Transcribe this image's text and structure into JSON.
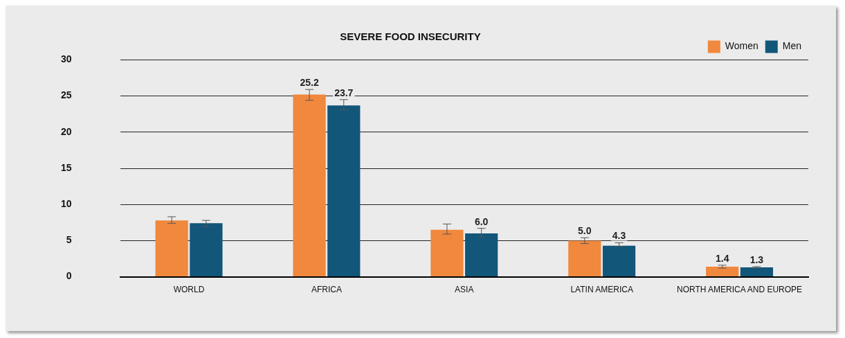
{
  "chart_data": {
    "type": "bar",
    "title": "SEVERE FOOD INSECURITY",
    "categories": [
      "WORLD",
      "AFRICA",
      "ASIA",
      "LATIN AMERICA",
      "NORTH AMERICA AND EUROPE"
    ],
    "series": [
      {
        "name": "Women",
        "color": "#f0883e",
        "values": [
          7.8,
          25.2,
          6.5,
          5.0,
          1.4
        ],
        "errors": [
          [
            7.4,
            8.3
          ],
          [
            24.4,
            25.9
          ],
          [
            5.9,
            7.3
          ],
          [
            4.6,
            5.4
          ],
          [
            1.2,
            1.6
          ]
        ],
        "value_labels": [
          null,
          "25.2",
          null,
          "5.0",
          "1.4"
        ]
      },
      {
        "name": "Men",
        "color": "#12567a",
        "values": [
          7.4,
          23.7,
          6.0,
          4.3,
          1.3
        ],
        "errors": [
          [
            6.9,
            7.8
          ],
          [
            23.1,
            24.5
          ],
          [
            5.5,
            6.7
          ],
          [
            4.2,
            4.7
          ],
          0.1
        ],
        "value_labels": [
          null,
          "23.7",
          "6.0",
          "4.3",
          "1.3"
        ]
      }
    ],
    "ylim": [
      0,
      30
    ],
    "yticks": [
      0,
      5,
      10,
      15,
      20,
      25,
      30
    ],
    "grid": "y",
    "legend": "top right"
  }
}
